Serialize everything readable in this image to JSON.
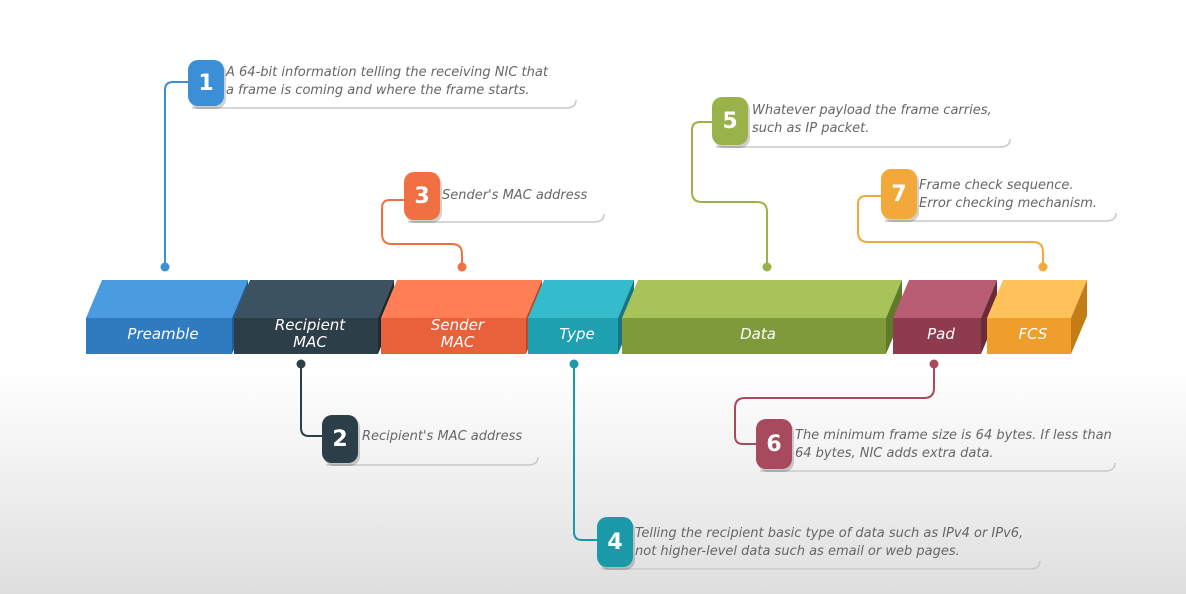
{
  "segments": [
    {
      "id": "preamble",
      "label": "Preamble",
      "color": "#2e7bbf",
      "top_color": "#4a9be0",
      "side_color": "#1f5e96"
    },
    {
      "id": "recipient-mac",
      "label": "Recipient MAC",
      "color": "#2c3e48",
      "top_color": "#3d5260",
      "side_color": "#1c2a32"
    },
    {
      "id": "sender-mac",
      "label": "Sender MAC",
      "color": "#e8613a",
      "top_color": "#ff7e55",
      "side_color": "#b84a2a"
    },
    {
      "id": "type",
      "label": "Type",
      "color": "#1fa0b0",
      "top_color": "#34bccc",
      "side_color": "#157683"
    },
    {
      "id": "data",
      "label": "Data",
      "color": "#7e9a3a",
      "top_color": "#a8c35a",
      "side_color": "#5f7a28"
    },
    {
      "id": "pad",
      "label": "Pad",
      "color": "#8e3b4e",
      "top_color": "#b85d72",
      "side_color": "#6b2a39"
    },
    {
      "id": "fcs",
      "label": "FCS",
      "color": "#ef9e2b",
      "top_color": "#ffc15a",
      "side_color": "#c27d17"
    }
  ],
  "callouts": [
    {
      "number": "1",
      "segment": "preamble",
      "line1": "A 64-bit information telling the receiving NIC that",
      "line2": "a frame is coming and where the frame starts.",
      "color": "#3b8fd6"
    },
    {
      "number": "2",
      "segment": "recipient-mac",
      "line1": "Recipient's MAC address",
      "line2": "",
      "color": "#2c3e48"
    },
    {
      "number": "3",
      "segment": "sender-mac",
      "line1": "Sender's MAC address",
      "line2": "",
      "color": "#f07044"
    },
    {
      "number": "4",
      "segment": "type",
      "line1": "Telling the recipient basic type of data such as IPv4 or IPv6,",
      "line2": "not higher-level data such as email or web pages.",
      "color": "#1a9aa8"
    },
    {
      "number": "5",
      "segment": "data",
      "line1": "Whatever payload the frame carries,",
      "line2": "such as IP packet.",
      "color": "#9ab24a"
    },
    {
      "number": "6",
      "segment": "pad",
      "line1": "The minimum frame size is 64 bytes. If less than",
      "line2": "64 bytes, NIC adds extra data.",
      "color": "#a84a5e"
    },
    {
      "number": "7",
      "segment": "fcs",
      "line1": "Frame check sequence.",
      "line2": "Error checking mechanism.",
      "color": "#f2a93a"
    }
  ]
}
